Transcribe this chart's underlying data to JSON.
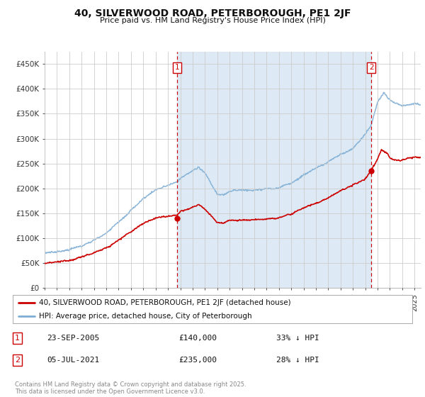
{
  "title_line1": "40, SILVERWOOD ROAD, PETERBOROUGH, PE1 2JF",
  "title_line2": "Price paid vs. HM Land Registry's House Price Index (HPI)",
  "background_color": "#ffffff",
  "grid_color": "#cccccc",
  "hpi_color": "#7eadd4",
  "price_color": "#cc0000",
  "shade_color": "#ddeaf5",
  "marker1_x": 2005.73,
  "marker2_x": 2021.5,
  "marker1_price": 140000,
  "marker2_price": 235000,
  "legend_label1": "40, SILVERWOOD ROAD, PETERBOROUGH, PE1 2JF (detached house)",
  "legend_label2": "HPI: Average price, detached house, City of Peterborough",
  "footer": "Contains HM Land Registry data © Crown copyright and database right 2025.\nThis data is licensed under the Open Government Licence v3.0.",
  "ylim_min": 0,
  "ylim_max": 475000,
  "yticks": [
    0,
    50000,
    100000,
    150000,
    200000,
    250000,
    300000,
    350000,
    400000,
    450000
  ]
}
